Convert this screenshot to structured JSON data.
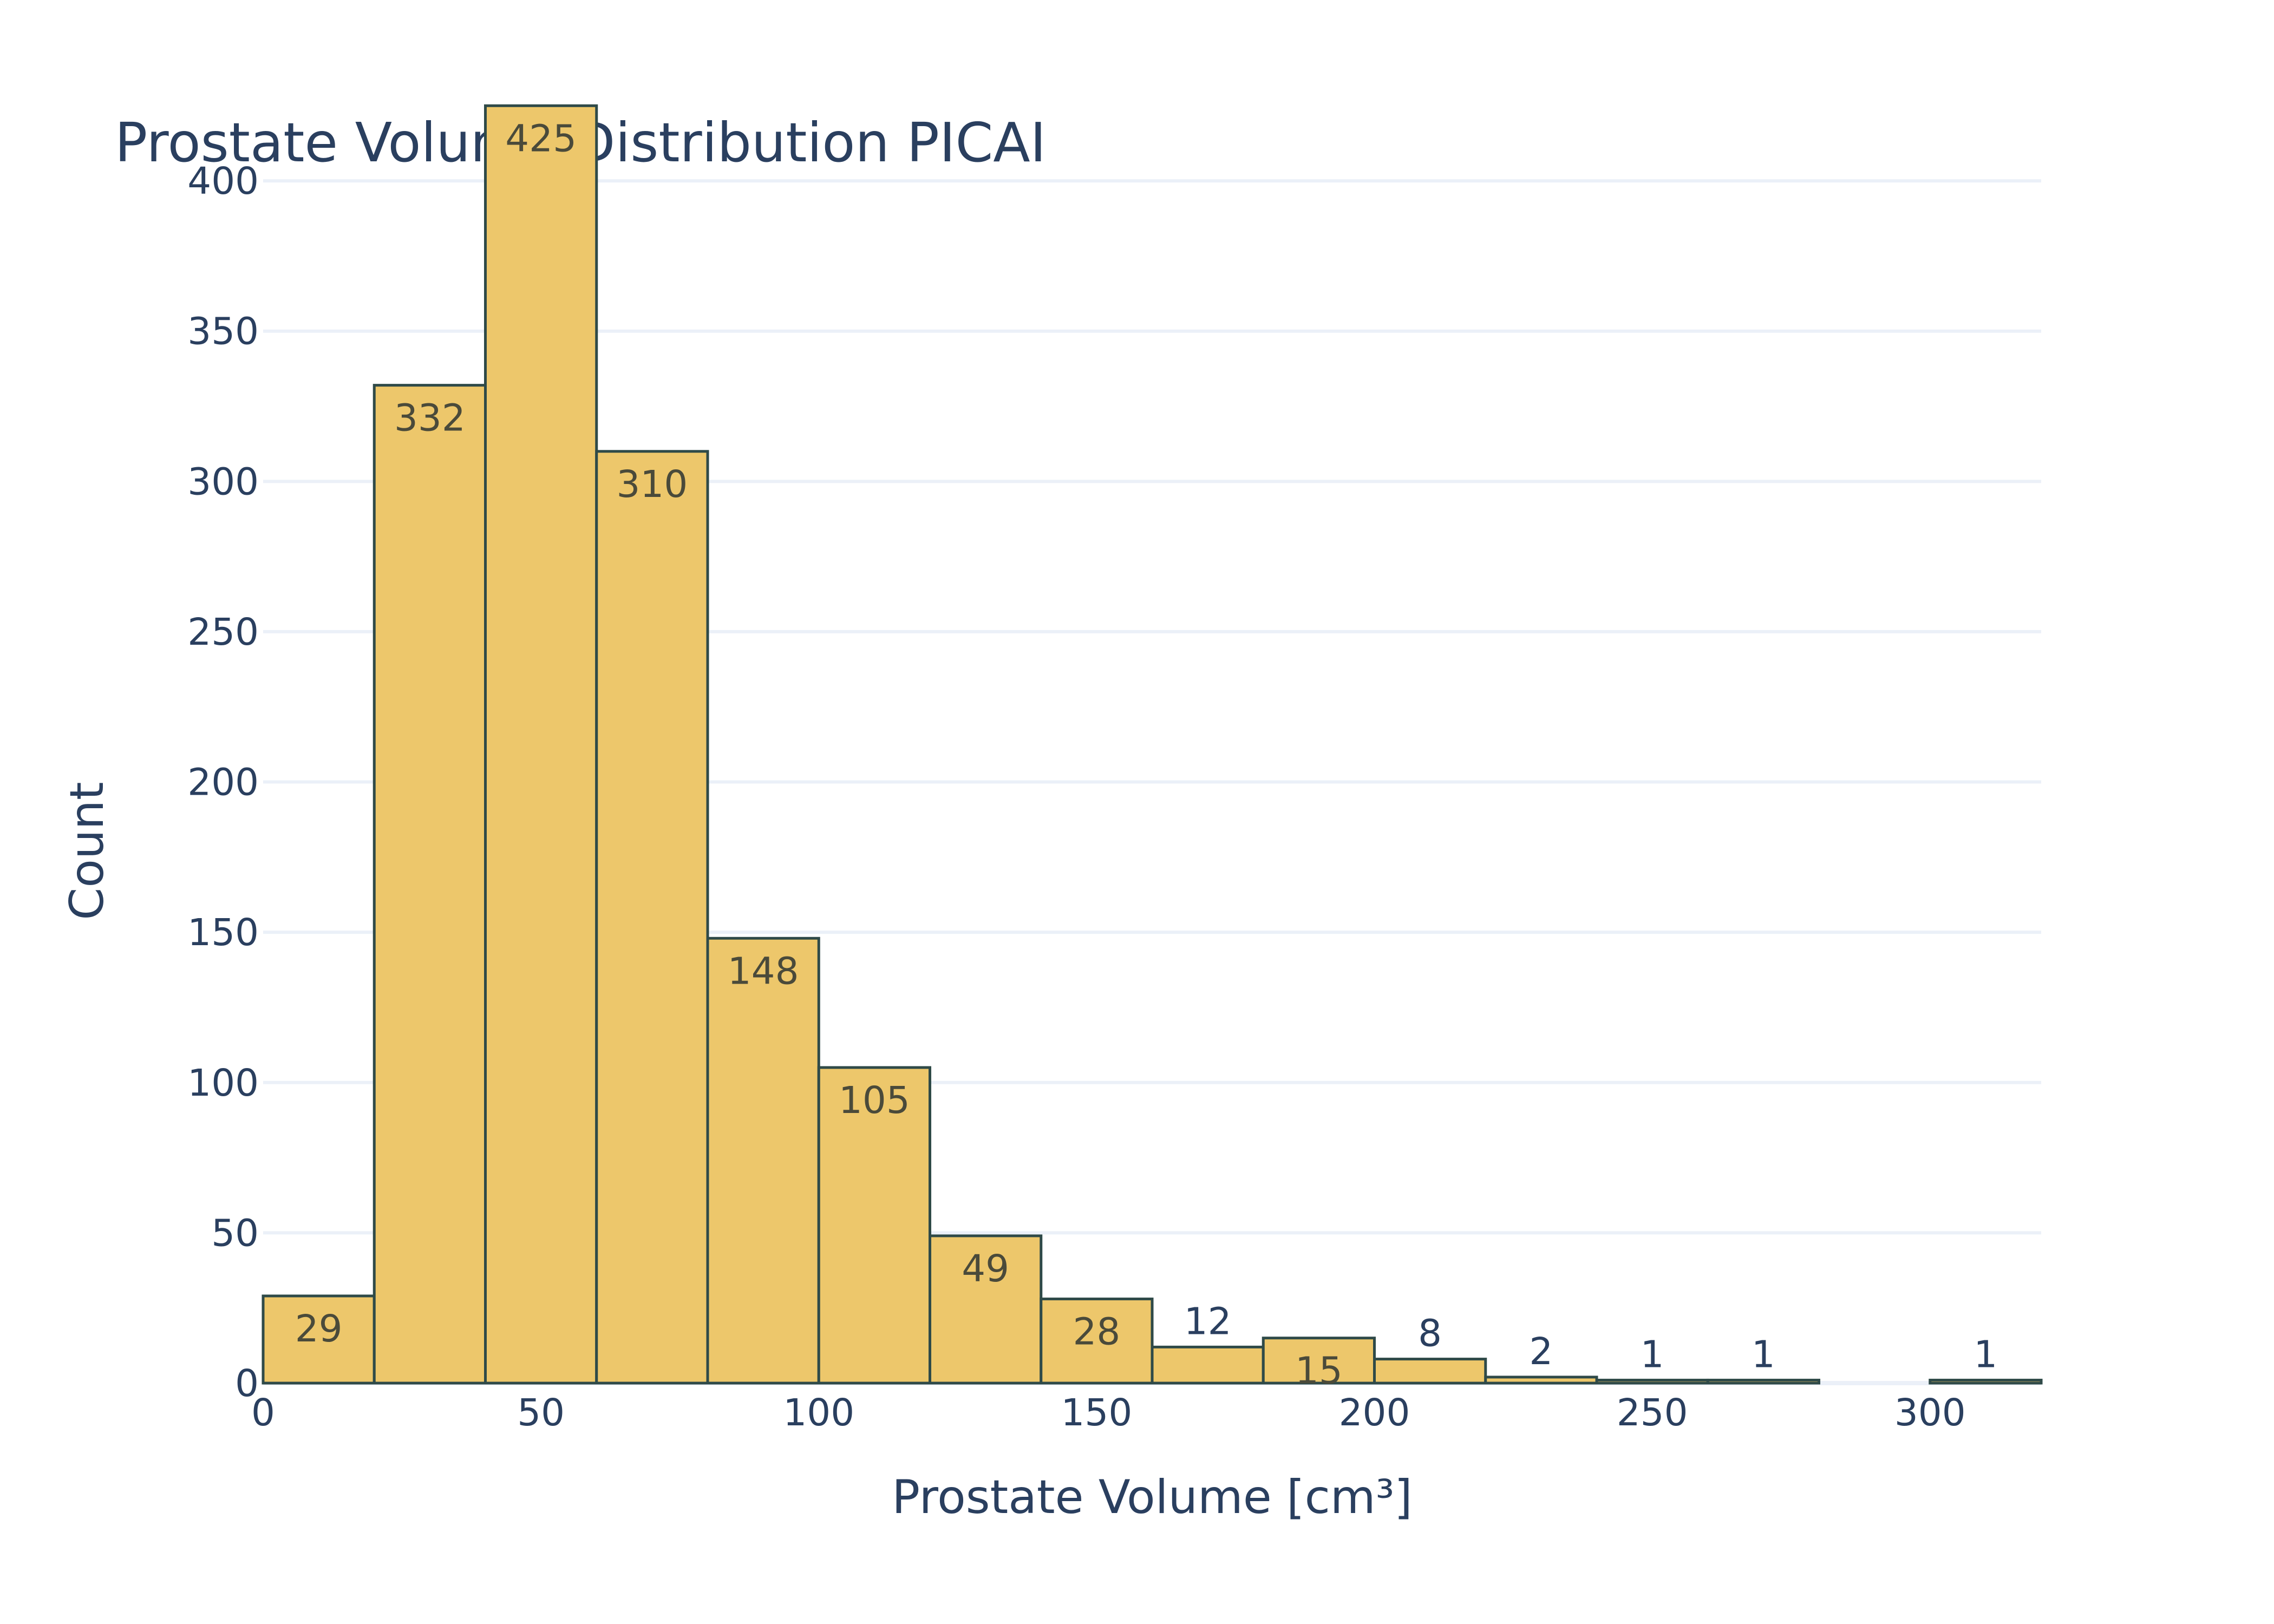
{
  "colors": {
    "bar_fill": "#edc76b",
    "bar_stroke": "#2f4a48",
    "grid": "#ebf0f8",
    "text": "#2a3f5f",
    "label_inside": "#4a4a3a",
    "background": "#ffffff"
  },
  "chart_data": {
    "type": "bar",
    "title": "Prostate Volume Distribution PICAI",
    "xlabel": "Prostate Volume [cm³]",
    "ylabel": "Count",
    "xlim": [
      0,
      320
    ],
    "ylim": [
      0,
      440
    ],
    "bin_width": 20,
    "x_ticks": [
      0,
      50,
      100,
      150,
      200,
      250,
      300
    ],
    "y_ticks": [
      0,
      50,
      100,
      150,
      200,
      250,
      300,
      350,
      400
    ],
    "grid": true,
    "legend": "none",
    "bins": [
      {
        "x0": 0,
        "x1": 20,
        "value": 29
      },
      {
        "x0": 20,
        "x1": 40,
        "value": 332
      },
      {
        "x0": 40,
        "x1": 60,
        "value": 425
      },
      {
        "x0": 60,
        "x1": 80,
        "value": 310
      },
      {
        "x0": 80,
        "x1": 100,
        "value": 148
      },
      {
        "x0": 100,
        "x1": 120,
        "value": 105
      },
      {
        "x0": 120,
        "x1": 140,
        "value": 49
      },
      {
        "x0": 140,
        "x1": 160,
        "value": 28
      },
      {
        "x0": 160,
        "x1": 180,
        "value": 12
      },
      {
        "x0": 180,
        "x1": 200,
        "value": 15
      },
      {
        "x0": 200,
        "x1": 220,
        "value": 8
      },
      {
        "x0": 220,
        "x1": 240,
        "value": 2
      },
      {
        "x0": 240,
        "x1": 260,
        "value": 1
      },
      {
        "x0": 260,
        "x1": 280,
        "value": 1
      },
      {
        "x0": 300,
        "x1": 320,
        "value": 1
      }
    ]
  }
}
